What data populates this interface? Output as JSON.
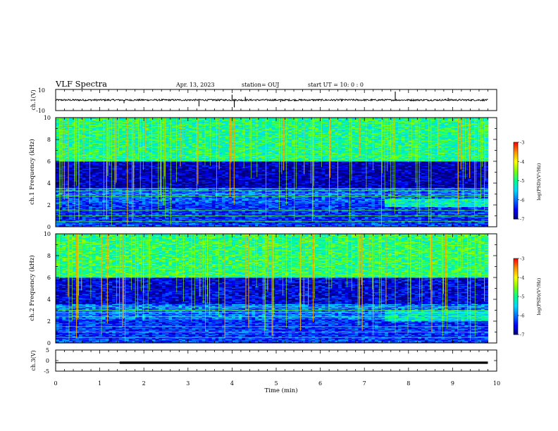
{
  "header": {
    "title": "VLF Spectra",
    "date": "Apr. 13, 2023",
    "station": "station= OUJ",
    "start_ut": "start  UT  =   10: 0  : 0"
  },
  "colors": {
    "waveform": "#000000",
    "spectrogram_colormap": [
      "#00007a",
      "#0000ff",
      "#0070ff",
      "#00d8ff",
      "#00ff90",
      "#7cff00",
      "#ffff00",
      "#ff9000",
      "#ff0000",
      "#ffffff"
    ]
  },
  "chart_data": [
    {
      "type": "line",
      "name": "ch1-waveform",
      "ylabel": "ch.1(V)",
      "ylim": [
        -10,
        10
      ],
      "yticks": [
        "10",
        "-10"
      ],
      "xlim": [
        0,
        10
      ],
      "baseline": 0,
      "noise_amplitude": 0.8,
      "spikes": [
        {
          "x": 1.55,
          "y": -3
        },
        {
          "x": 3.25,
          "y": -6
        },
        {
          "x": 4.0,
          "y": 5
        },
        {
          "x": 4.05,
          "y": -7
        },
        {
          "x": 4.3,
          "y": 3
        },
        {
          "x": 5.1,
          "y": -2
        },
        {
          "x": 7.7,
          "y": 8
        },
        {
          "x": 8.9,
          "y": 2
        }
      ]
    },
    {
      "type": "heatmap",
      "name": "ch1-spectrogram",
      "ylabel": "ch.1 Frequency (kHz)",
      "ylim": [
        0,
        10
      ],
      "yticks": [
        "0",
        "2",
        "4",
        "6",
        "8",
        "10"
      ],
      "xlim": [
        0,
        10
      ],
      "colorbar_label": "log(PSD)(V²/Hz)",
      "colorbar_range": [
        -7,
        -3
      ],
      "colorbar_ticks": [
        "-3",
        "-4",
        "-5",
        "-6",
        "-7"
      ],
      "bands": [
        {
          "f0": 0,
          "f1": 0.3,
          "level": -6.2
        },
        {
          "f0": 0.3,
          "f1": 2.2,
          "level": -6.3
        },
        {
          "f0": 2.2,
          "f1": 3.6,
          "level": -6.1
        },
        {
          "f0": 3.6,
          "f1": 6.0,
          "level": -6.8
        },
        {
          "f0": 6.0,
          "f1": 10.0,
          "level": -5.0
        }
      ],
      "lines_khz": [
        0.5,
        1.0,
        1.5,
        2.8,
        3.0,
        3.3,
        3.5,
        6.5
      ],
      "late_enhancement": {
        "x0": 7.5,
        "x1": 9.8,
        "f0": 1.8,
        "f1": 2.6,
        "level": -5.2
      }
    },
    {
      "type": "heatmap",
      "name": "ch2-spectrogram",
      "ylabel": "ch.2 Frequency (kHz)",
      "ylim": [
        0,
        10
      ],
      "yticks": [
        "0",
        "2",
        "4",
        "6",
        "8",
        "10"
      ],
      "xlim": [
        0,
        10
      ],
      "colorbar_label": "log(PSD)(V²/Hz)",
      "colorbar_range": [
        -7,
        -3
      ],
      "colorbar_ticks": [
        "-3",
        "-4",
        "-5",
        "-6",
        "-7"
      ],
      "bands": [
        {
          "f0": 0,
          "f1": 0.3,
          "level": -6.2
        },
        {
          "f0": 0.3,
          "f1": 2.2,
          "level": -6.3
        },
        {
          "f0": 2.2,
          "f1": 3.6,
          "level": -6.0
        },
        {
          "f0": 3.6,
          "f1": 6.0,
          "level": -6.6
        },
        {
          "f0": 6.0,
          "f1": 10.0,
          "level": -4.9
        }
      ],
      "lines_khz": [
        0.5,
        1.0,
        1.5,
        2.4,
        2.8,
        3.0,
        3.3,
        6.2
      ],
      "late_enhancement": {
        "x0": 7.5,
        "x1": 9.8,
        "f0": 2.0,
        "f1": 3.0,
        "level": -5.3
      }
    },
    {
      "type": "line",
      "name": "ch3-trace",
      "ylabel": "ch.3(V)",
      "ylim": [
        -5,
        5
      ],
      "yticks": [
        "5",
        "0",
        "-5"
      ],
      "xlim": [
        0,
        10
      ],
      "xlabel": "Time (min)",
      "xticks": [
        "0",
        "1",
        "2",
        "3",
        "4",
        "5",
        "6",
        "7",
        "8",
        "9",
        "10"
      ],
      "segments": [
        {
          "x0": 0.0,
          "x1": 1.45,
          "y": -1.0,
          "weight": "thin"
        },
        {
          "x0": 1.45,
          "x1": 9.8,
          "y": -1.0,
          "weight": "thick"
        }
      ]
    }
  ]
}
